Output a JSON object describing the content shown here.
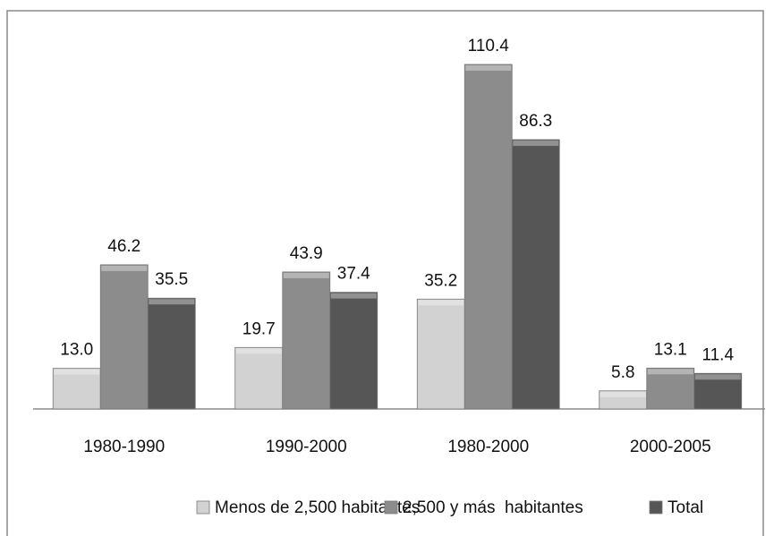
{
  "chart_data": {
    "type": "bar",
    "categories": [
      "1980-1990",
      "1990-2000",
      "1980-2000",
      "2000-2005"
    ],
    "series": [
      {
        "name": "Menos de 2,500 habitantes",
        "color": "#d2d2d2",
        "values": [
          13.0,
          19.7,
          35.2,
          5.8
        ],
        "value_labels": [
          "13.0",
          "19.7",
          "35.2",
          "5.8"
        ]
      },
      {
        "name": "2,500 y más  habitantes",
        "color": "#8c8c8c",
        "values": [
          46.2,
          43.9,
          110.4,
          13.1
        ],
        "value_labels": [
          "46.2",
          "43.9",
          "110.4",
          "13.1"
        ]
      },
      {
        "name": "Total",
        "color": "#565656",
        "values": [
          35.5,
          37.4,
          86.3,
          11.4
        ],
        "value_labels": [
          "35.5",
          "37.4",
          "86.3",
          "11.4"
        ]
      }
    ]
  }
}
